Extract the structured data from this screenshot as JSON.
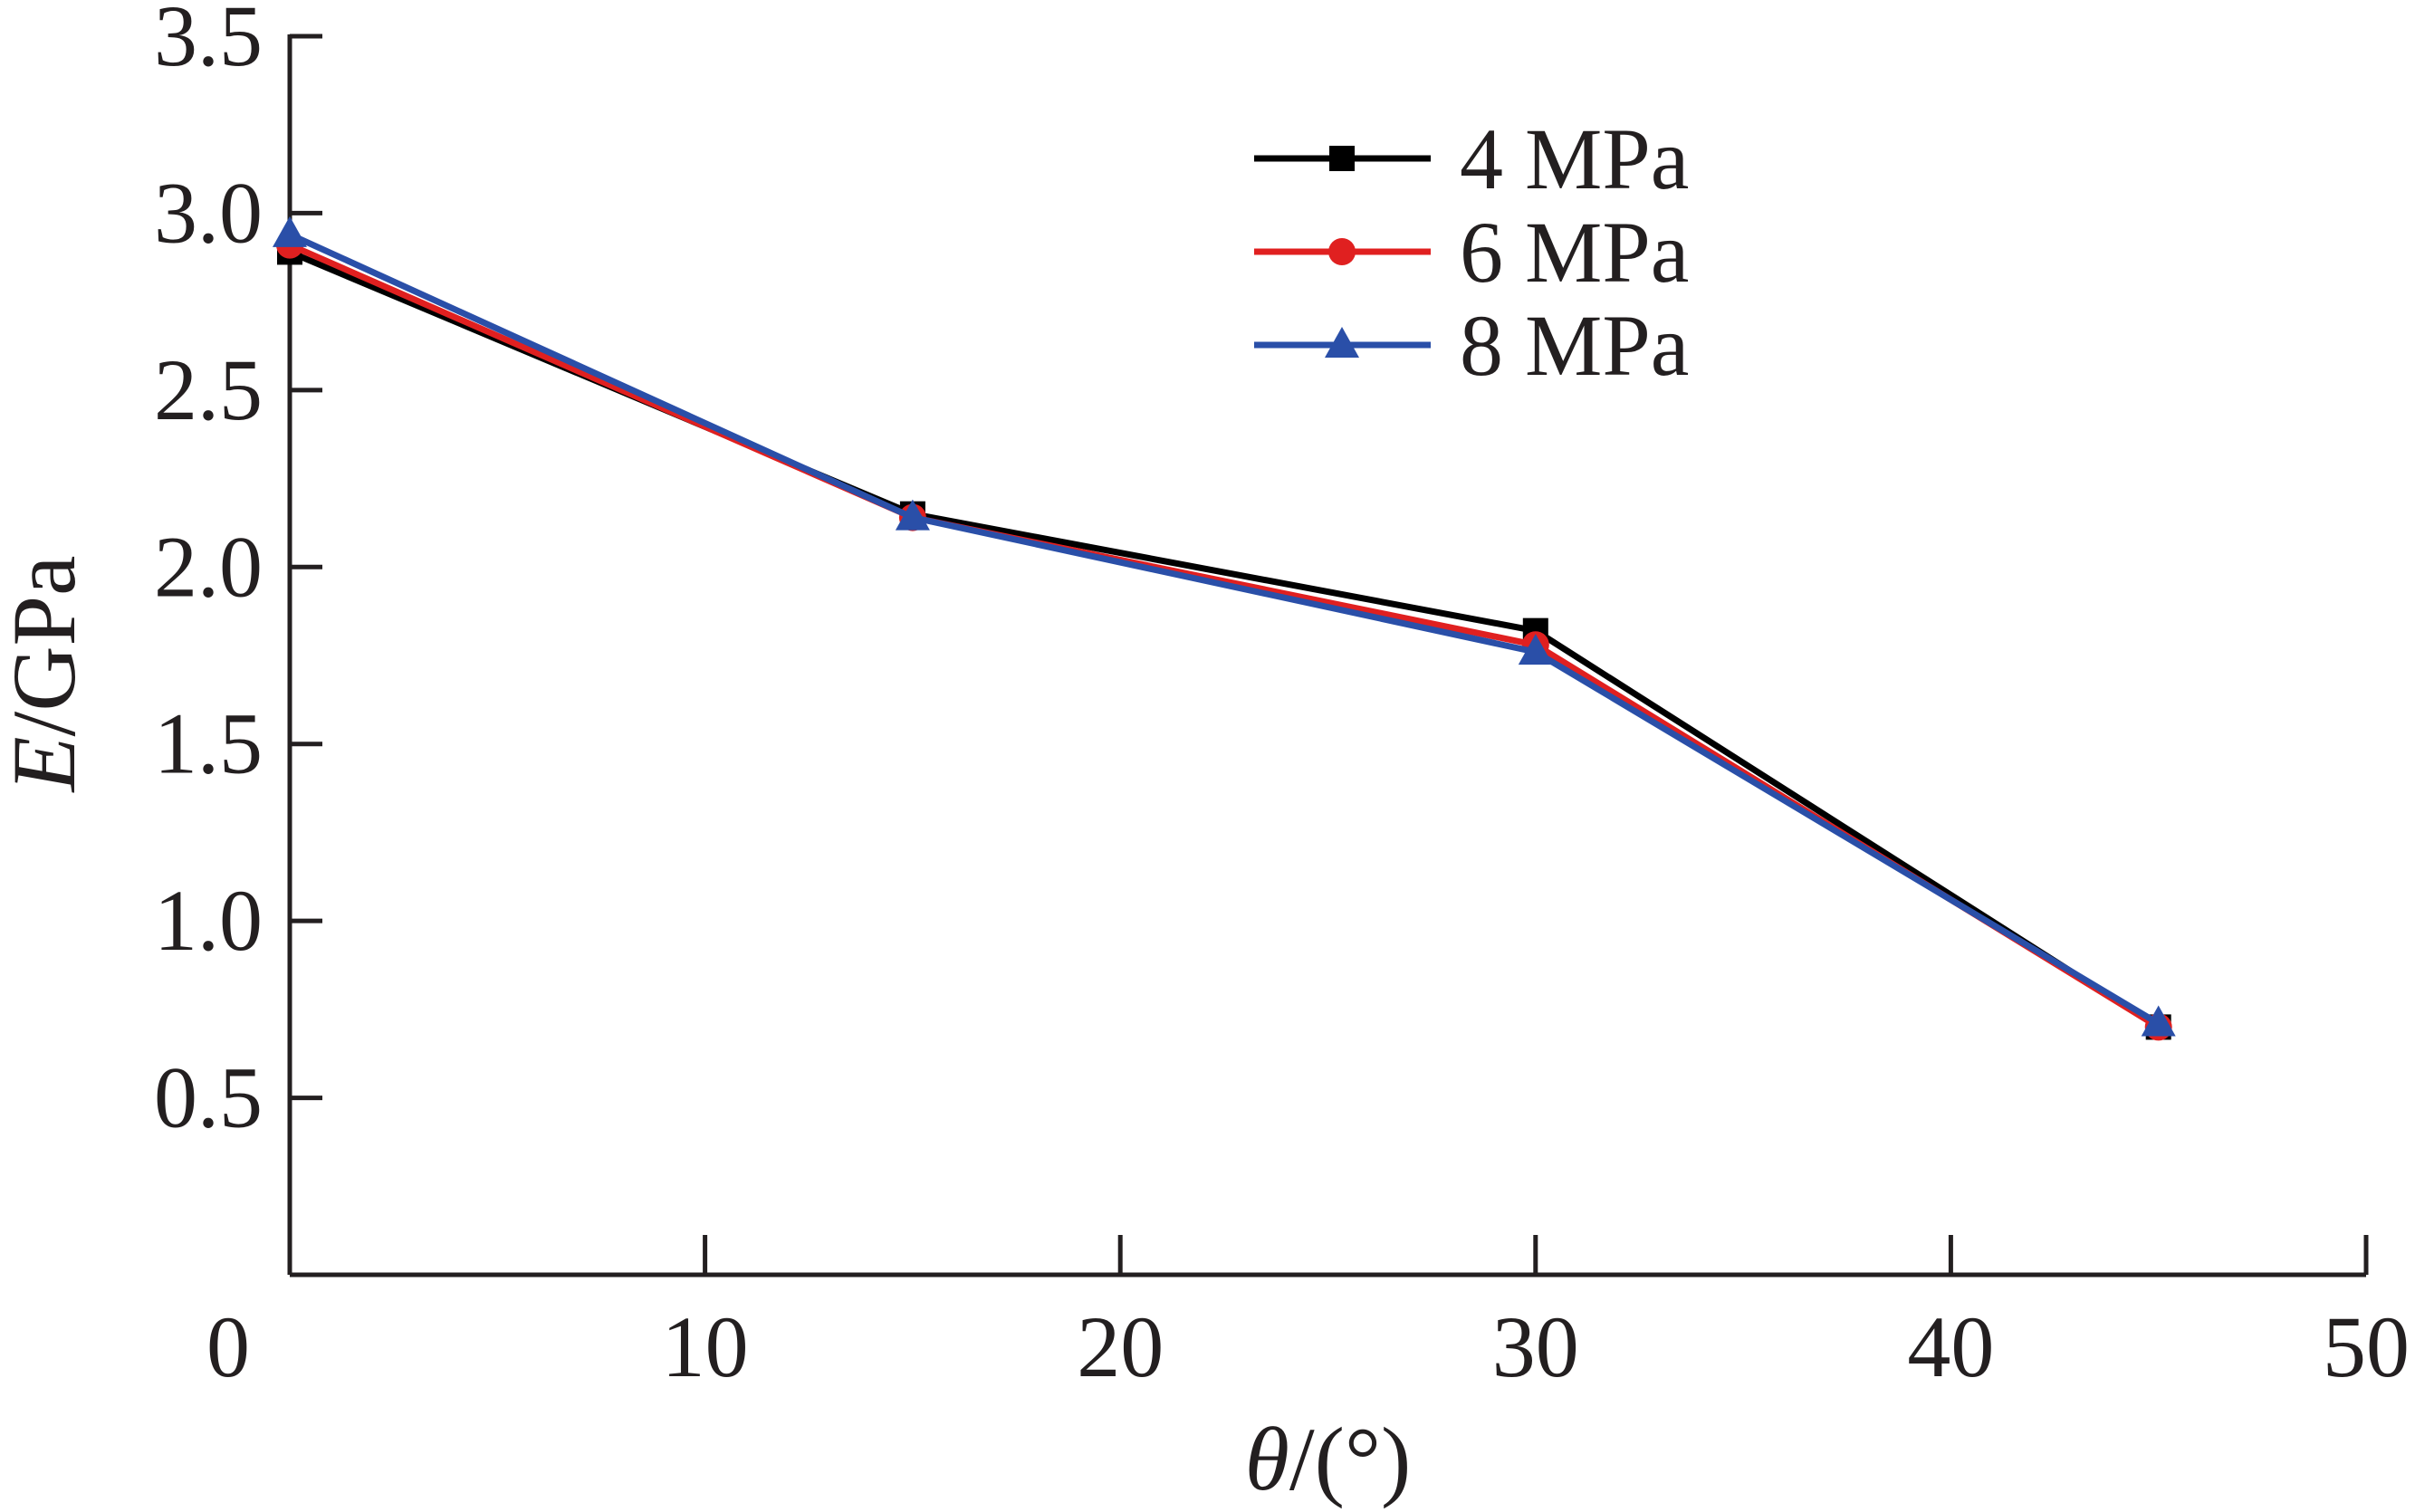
{
  "chart_data": {
    "type": "line",
    "title": "",
    "xlabel": {
      "italic": "θ",
      "rest": "/(°)"
    },
    "ylabel": {
      "italic": "E",
      "rest": "/GPa"
    },
    "xlim": [
      0,
      50
    ],
    "ylim": [
      0,
      3.5
    ],
    "x_ticks": [
      0,
      10,
      20,
      30,
      40,
      50
    ],
    "x_tick_labels": [
      "0",
      "10",
      "20",
      "30",
      "40",
      "50"
    ],
    "y_ticks": [
      0.5,
      1.0,
      1.5,
      2.0,
      2.5,
      3.0,
      3.5
    ],
    "y_tick_labels": [
      "0.5",
      "1.0",
      "1.5",
      "2.0",
      "2.5",
      "3.0",
      "3.5"
    ],
    "grid": false,
    "legend_position": "top-right",
    "series": [
      {
        "name": "4 MPa",
        "color": "#000000",
        "marker": "square",
        "x": [
          0,
          15,
          30,
          45
        ],
        "y": [
          2.89,
          2.15,
          1.82,
          0.7
        ]
      },
      {
        "name": "6 MPa",
        "color": "#e02020",
        "marker": "circle",
        "x": [
          0,
          15,
          30,
          45
        ],
        "y": [
          2.91,
          2.14,
          1.78,
          0.7
        ]
      },
      {
        "name": "8 MPa",
        "color": "#2a4fa8",
        "marker": "triangle",
        "x": [
          0,
          15,
          30,
          45
        ],
        "y": [
          2.94,
          2.14,
          1.76,
          0.71
        ]
      }
    ]
  }
}
